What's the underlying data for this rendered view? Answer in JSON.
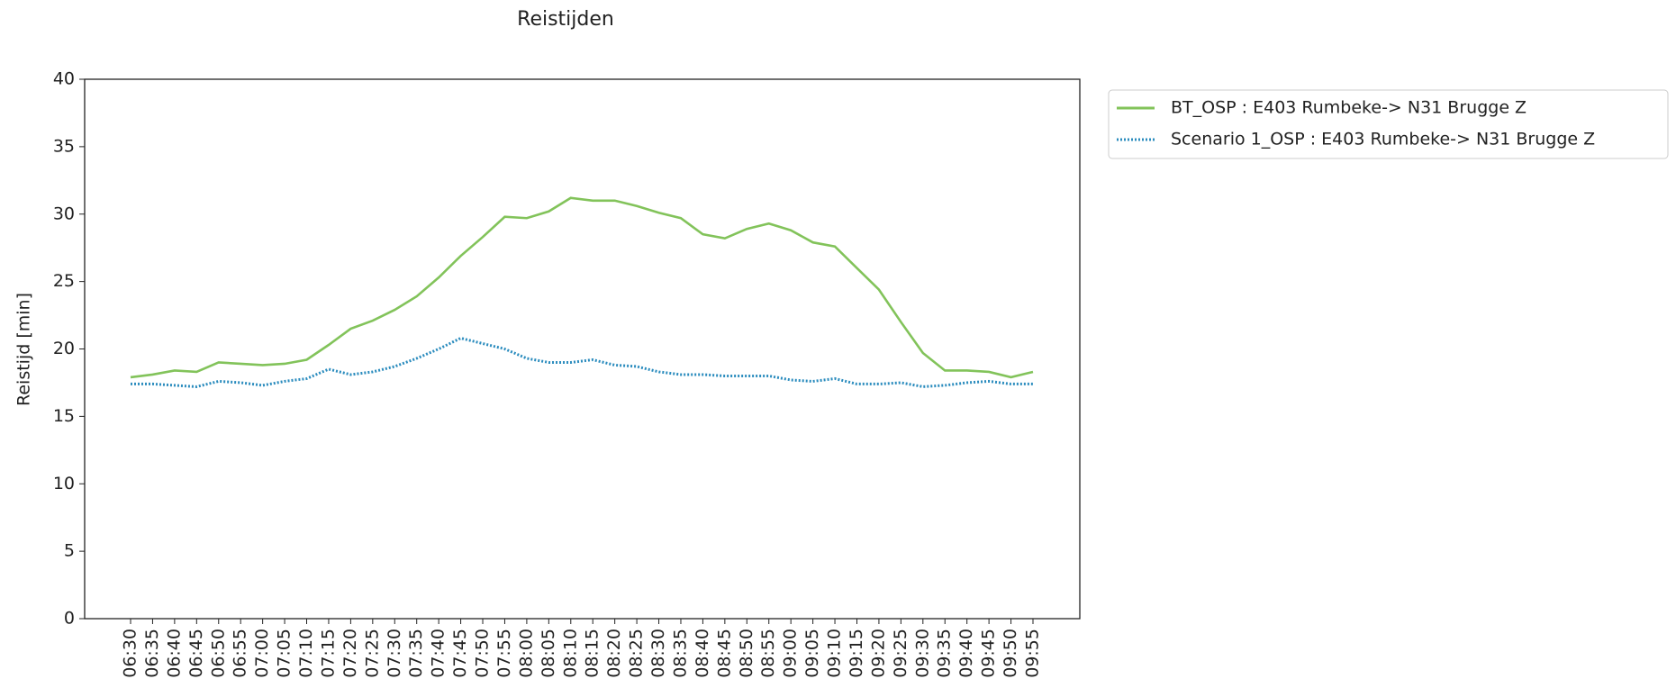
{
  "chart_data": {
    "type": "line",
    "title": "Reistijden",
    "ylabel": "Reistijd [min]",
    "categories": [
      "06:30",
      "06:35",
      "06:40",
      "06:45",
      "06:50",
      "06:55",
      "07:00",
      "07:05",
      "07:10",
      "07:15",
      "07:20",
      "07:25",
      "07:30",
      "07:35",
      "07:40",
      "07:45",
      "07:50",
      "07:55",
      "08:00",
      "08:05",
      "08:10",
      "08:15",
      "08:20",
      "08:25",
      "08:30",
      "08:35",
      "08:40",
      "08:45",
      "08:50",
      "08:55",
      "09:00",
      "09:05",
      "09:10",
      "09:15",
      "09:20",
      "09:25",
      "09:30",
      "09:35",
      "09:40",
      "09:45",
      "09:50",
      "09:55"
    ],
    "series": [
      {
        "name": "BT_OSP : E403 Rumbeke-> N31 Brugge Z",
        "color": "#82c35a",
        "style": "solid",
        "values": [
          17.9,
          18.1,
          18.4,
          18.3,
          19.0,
          18.9,
          18.8,
          18.9,
          19.2,
          20.3,
          21.5,
          22.1,
          22.9,
          23.9,
          25.3,
          26.9,
          28.3,
          29.8,
          29.7,
          30.2,
          31.2,
          31.0,
          31.0,
          30.6,
          30.1,
          29.7,
          28.5,
          28.2,
          28.9,
          29.3,
          28.8,
          27.9,
          27.6,
          26.0,
          24.4,
          22.0,
          19.7,
          18.4,
          18.4,
          18.3,
          17.9,
          18.3
        ]
      },
      {
        "name": "Scenario 1_OSP : E403 Rumbeke-> N31 Brugge Z",
        "color": "#2b8cbe",
        "style": "dotted",
        "values": [
          17.4,
          17.4,
          17.3,
          17.2,
          17.6,
          17.5,
          17.3,
          17.6,
          17.8,
          18.5,
          18.1,
          18.3,
          18.7,
          19.3,
          20.0,
          20.8,
          20.4,
          20.0,
          19.3,
          19.0,
          19.0,
          19.2,
          18.8,
          18.7,
          18.3,
          18.1,
          18.1,
          18.0,
          18.0,
          18.0,
          17.7,
          17.6,
          17.8,
          17.4,
          17.4,
          17.5,
          17.2,
          17.3,
          17.5,
          17.6,
          17.4,
          17.4
        ]
      }
    ],
    "ylim": [
      0,
      40
    ],
    "yticks": [
      0,
      5,
      10,
      15,
      20,
      25,
      30,
      35,
      40
    ],
    "grid": false,
    "legend": "outside upper right"
  }
}
